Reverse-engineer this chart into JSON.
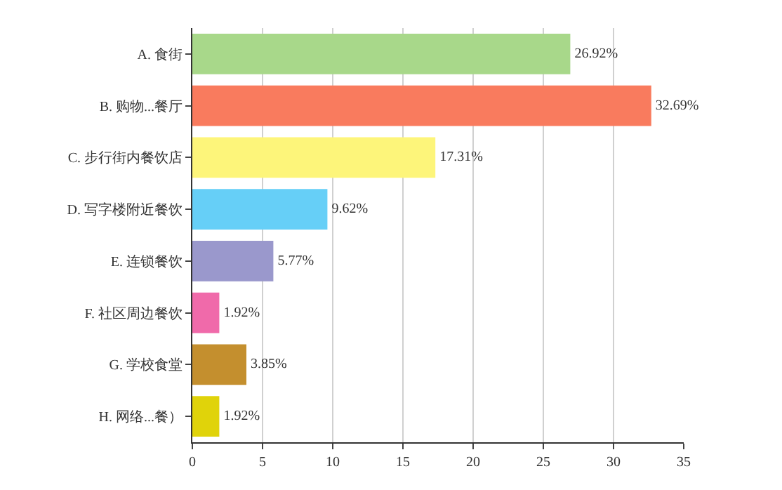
{
  "chart_data": {
    "type": "bar",
    "orientation": "horizontal",
    "categories": [
      "A. 食街",
      "B. 购物...餐厅",
      "C. 步行街内餐饮店",
      "D. 写字楼附近餐饮",
      "E. 连锁餐饮",
      "F. 社区周边餐饮",
      "G. 学校食堂",
      "H. 网络...餐）"
    ],
    "values": [
      26.92,
      32.69,
      17.31,
      9.62,
      5.77,
      1.92,
      3.85,
      1.92
    ],
    "value_labels": [
      "26.92%",
      "32.69%",
      "17.31%",
      "9.62%",
      "5.77%",
      "1.92%",
      "3.85%",
      "1.92%"
    ],
    "colors": [
      "#a8d88a",
      "#f97b5e",
      "#fdf57a",
      "#66cff7",
      "#9a98cc",
      "#f06aaa",
      "#c48f2e",
      "#e0d30a"
    ],
    "xlim": [
      0,
      35
    ],
    "xticks": [
      0,
      5,
      10,
      15,
      20,
      25,
      30,
      35
    ],
    "grid": "x"
  }
}
